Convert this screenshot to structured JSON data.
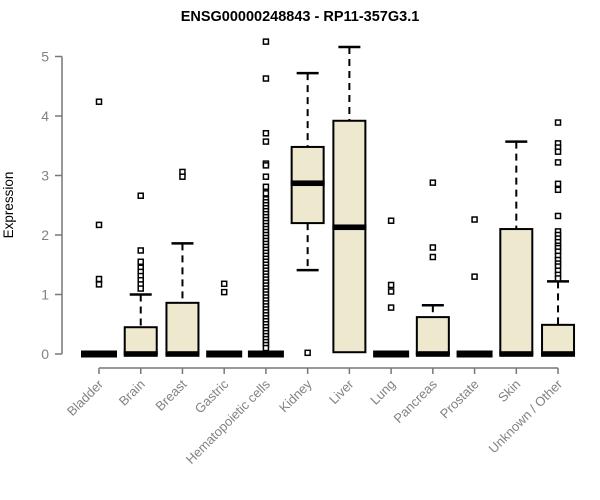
{
  "colors": {
    "box_fill": "#EDE8CE",
    "box_stroke": "#000000",
    "median": "#000000",
    "whisker": "#000000",
    "outlier_stroke": "#000000",
    "outlier_fill": "#FFFFFF",
    "axis_line": "#777777",
    "tick_label": "#828282",
    "title": "#000000",
    "background": "#FFFFFF"
  },
  "chart_data": {
    "type": "boxplot",
    "title": "ENSG00000248843 - RP11-357G3.1",
    "xlabel": "",
    "ylabel": "Expression",
    "ylim": [
      0,
      5
    ],
    "yticks": [
      0,
      1,
      2,
      3,
      4,
      5
    ],
    "grid": false,
    "legend": false,
    "categories": [
      "Bladder",
      "Brain",
      "Breast",
      "Gastric",
      "Hematopoietic cells",
      "Kidney",
      "Liver",
      "Lung",
      "Pancreas",
      "Prostate",
      "Skin",
      "Unknown / Other"
    ],
    "series": [
      {
        "name": "Bladder",
        "q1": 0,
        "median": 0,
        "q3": 0,
        "whisker_low": 0,
        "whisker_high": 0,
        "outliers": [
          4.24,
          2.17,
          1.26,
          1.17
        ]
      },
      {
        "name": "Brain",
        "q1": 0,
        "median": 0,
        "q3": 0.45,
        "whisker_low": 0,
        "whisker_high": 1.0,
        "outliers": [
          2.66,
          1.74,
          1.55,
          1.45,
          1.38,
          1.31,
          1.24,
          1.17,
          1.1
        ]
      },
      {
        "name": "Breast",
        "q1": 0,
        "median": 0,
        "q3": 0.86,
        "whisker_low": 0,
        "whisker_high": 1.86,
        "outliers": [
          3.06,
          2.98
        ]
      },
      {
        "name": "Gastric",
        "q1": 0,
        "median": 0,
        "q3": 0,
        "whisker_low": 0,
        "whisker_high": 0,
        "outliers": [
          1.18,
          1.04
        ]
      },
      {
        "name": "Hematopoietic cells",
        "q1": 0,
        "median": 0,
        "q3": 0,
        "whisker_low": 0,
        "whisker_high": 0,
        "outliers": [
          5.25,
          4.63,
          3.71,
          3.57,
          3.2,
          3.17,
          2.98,
          2.81,
          2.7,
          2.6,
          2.55,
          2.5,
          2.45,
          2.4,
          2.35,
          2.3,
          2.25,
          2.2,
          2.15,
          2.1,
          2.05,
          2.0,
          1.95,
          1.9,
          1.85,
          1.8,
          1.75,
          1.7,
          1.65,
          1.6,
          1.55,
          1.5,
          1.45,
          1.4,
          1.35,
          1.3,
          1.25,
          1.2,
          1.15,
          1.1,
          1.05,
          1.0,
          0.95,
          0.9,
          0.85,
          0.8,
          0.75,
          0.7,
          0.65,
          0.6,
          0.55,
          0.5,
          0.45,
          0.4,
          0.35,
          0.3,
          0.25,
          0.2,
          0.15,
          0.1
        ]
      },
      {
        "name": "Kidney",
        "q1": 2.2,
        "median": 2.87,
        "q3": 3.48,
        "whisker_low": 1.41,
        "whisker_high": 4.72,
        "outliers": [
          0.02
        ]
      },
      {
        "name": "Liver",
        "q1": 0.03,
        "median": 2.13,
        "q3": 3.92,
        "whisker_low": 0.03,
        "whisker_high": 5.16,
        "outliers": []
      },
      {
        "name": "Lung",
        "q1": 0,
        "median": 0,
        "q3": 0,
        "whisker_low": 0,
        "whisker_high": 0,
        "outliers": [
          2.24,
          1.16,
          1.05,
          0.78
        ]
      },
      {
        "name": "Pancreas",
        "q1": 0,
        "median": 0,
        "q3": 0.62,
        "whisker_low": 0,
        "whisker_high": 0.82,
        "outliers": [
          2.88,
          1.79,
          1.63
        ]
      },
      {
        "name": "Prostate",
        "q1": 0,
        "median": 0,
        "q3": 0,
        "whisker_low": 0,
        "whisker_high": 0,
        "outliers": [
          2.26,
          1.3
        ]
      },
      {
        "name": "Skin",
        "q1": 0,
        "median": 0,
        "q3": 2.1,
        "whisker_low": 0,
        "whisker_high": 3.57,
        "outliers": []
      },
      {
        "name": "Unknown / Other",
        "q1": 0,
        "median": 0,
        "q3": 0.49,
        "whisker_low": 0,
        "whisker_high": 1.22,
        "outliers": [
          3.89,
          3.54,
          3.47,
          3.4,
          3.22,
          2.86,
          2.76,
          2.32,
          2.06,
          2.0,
          1.94,
          1.88,
          1.82,
          1.78,
          1.72,
          1.65,
          1.58,
          1.52,
          1.47,
          1.4,
          1.33,
          1.27
        ]
      }
    ]
  }
}
